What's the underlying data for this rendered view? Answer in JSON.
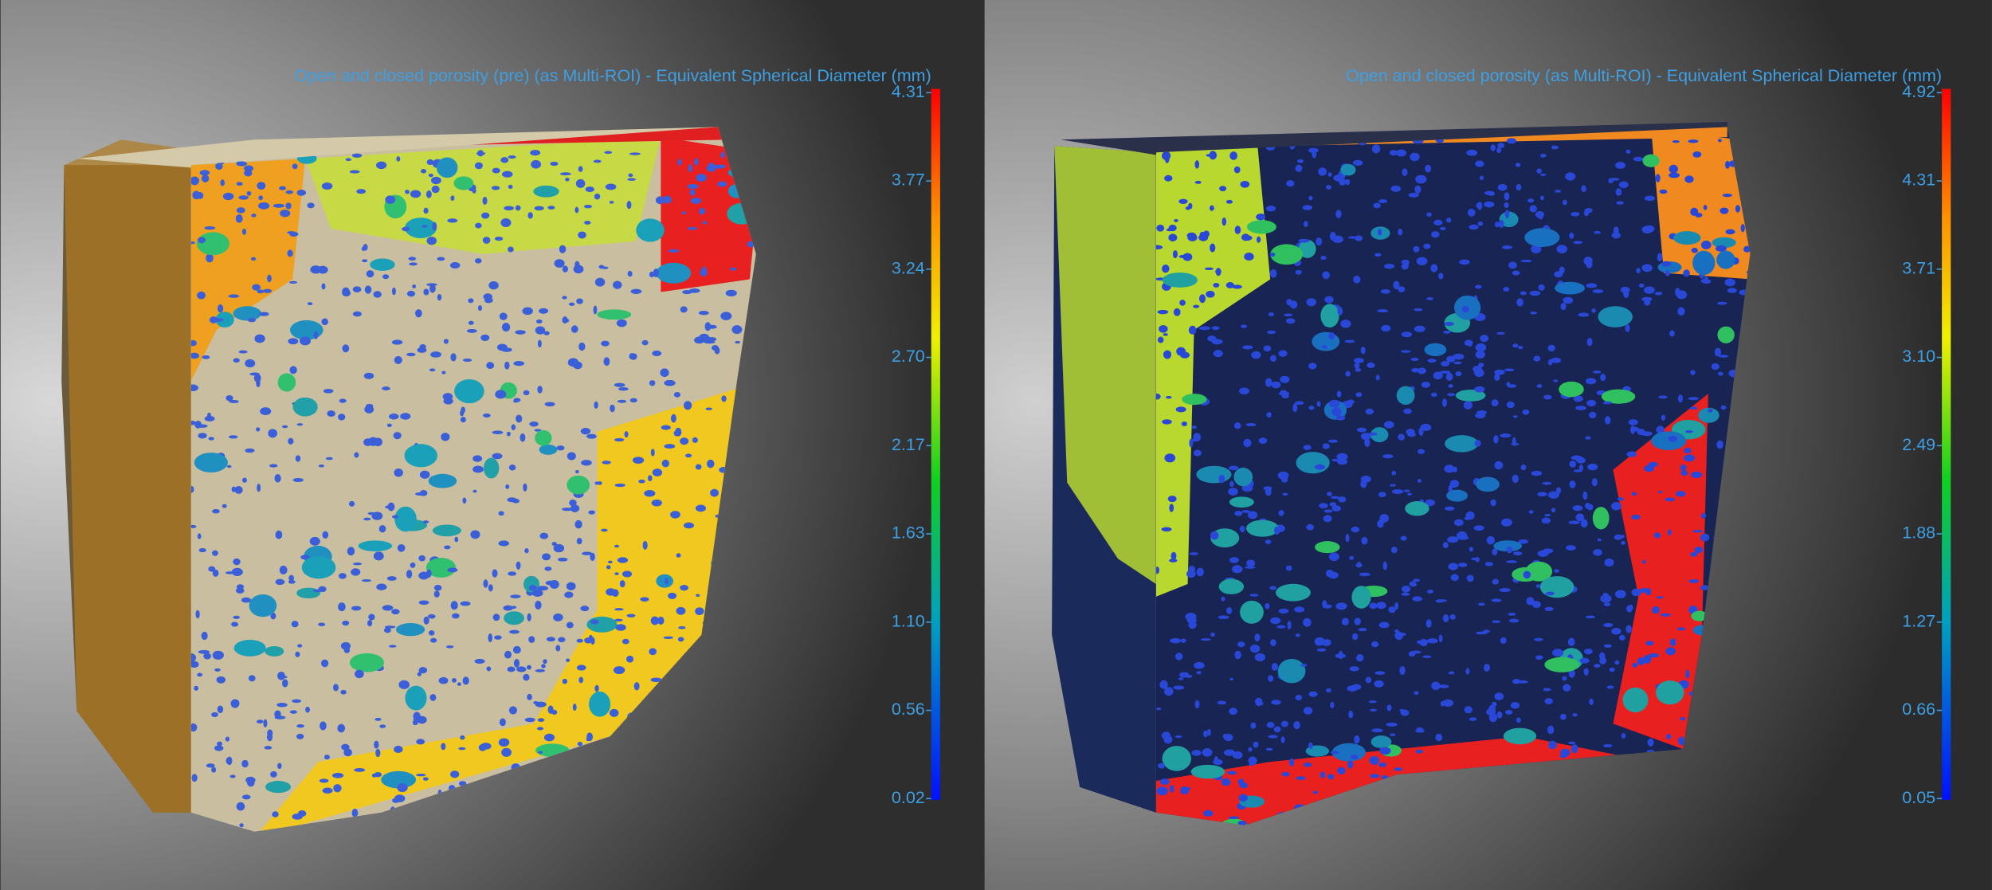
{
  "panels": [
    {
      "title": "Open and closed porosity (pre) (as Multi-ROI) - Equivalent Spherical Diameter (mm)",
      "colorbar": {
        "ticks": [
          "4.31",
          "3.77",
          "3.24",
          "2.70",
          "2.17",
          "1.63",
          "1.10",
          "0.56",
          "0.02"
        ]
      }
    },
    {
      "title": "Open and closed porosity (as Multi-ROI) - Equivalent Spherical Diameter (mm)",
      "colorbar": {
        "ticks": [
          "4.92",
          "4.31",
          "3.71",
          "3.10",
          "2.49",
          "1.88",
          "1.27",
          "0.66",
          "0.05"
        ]
      }
    }
  ]
}
